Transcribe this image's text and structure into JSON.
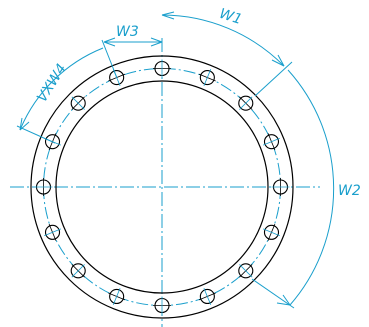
{
  "drawing": {
    "dimensions": {
      "w1": "W1",
      "w2": "W2",
      "w3": "W3",
      "w4": "VXW4"
    },
    "colors": {
      "geometry": "#000000",
      "dimension": "#1a9fcc"
    },
    "bolt_hole_count": 16
  }
}
